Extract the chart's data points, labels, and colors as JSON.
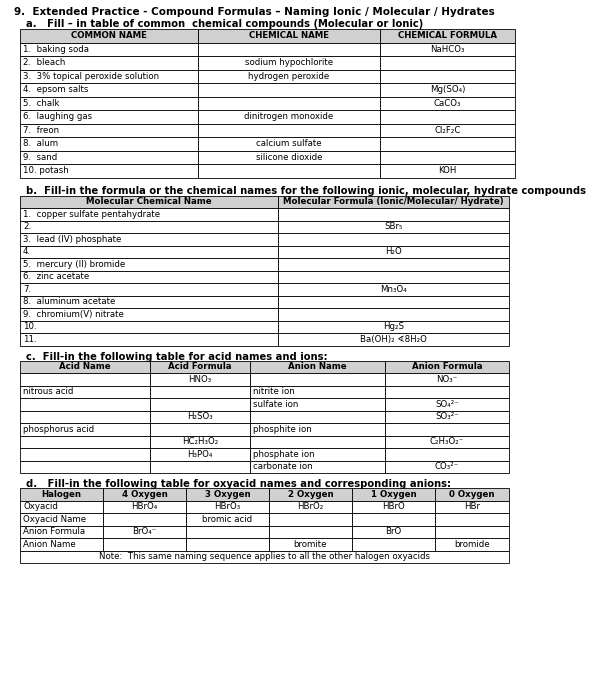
{
  "title": "9.  Extended Practice - Compound Formulas – Naming Ionic / Molecular / Hydrates",
  "section_a_label": "a.   Fill – in table of common  chemical compounds (Molecular or Ionic)",
  "table_a_headers": [
    "COMMON NAME",
    "CHEMICAL NAME",
    "CHEMICAL FORMULA"
  ],
  "table_a_rows": [
    [
      "1.  baking soda",
      "",
      "NaHCO₃"
    ],
    [
      "2.  bleach",
      "sodium hypochlorite",
      ""
    ],
    [
      "3.  3% topical peroxide solution",
      "hydrogen peroxide",
      ""
    ],
    [
      "4.  epsom salts",
      "",
      "Mg(SO₄)"
    ],
    [
      "5.  chalk",
      "",
      "CaCO₃"
    ],
    [
      "6.  laughing gas",
      "dinitrogen monoxide",
      ""
    ],
    [
      "7.  freon",
      "",
      "Cl₂F₂C"
    ],
    [
      "8.  alum",
      "calcium sulfate",
      ""
    ],
    [
      "9.  sand",
      "silicone dioxide",
      ""
    ],
    [
      "10. potash",
      "",
      "KOH"
    ]
  ],
  "section_b_label": "b.  Fill-in the formula or the chemical names for the following ionic, molecular, hydrate compounds",
  "table_b_headers": [
    "Molecular Chemical Name",
    "Molecular Formula (Ionic/Molecular/ Hydrate)"
  ],
  "table_b_rows": [
    [
      "1.  copper sulfate pentahydrate",
      ""
    ],
    [
      "2.",
      "SBr₅"
    ],
    [
      "3.  lead (IV) phosphate",
      ""
    ],
    [
      "4.",
      "H₂O"
    ],
    [
      "5.  mercury (II) bromide",
      ""
    ],
    [
      "6.  zinc acetate",
      ""
    ],
    [
      "7.",
      "Mn₃O₄"
    ],
    [
      "8.  aluminum acetate",
      ""
    ],
    [
      "9.  chromium(V) nitrate",
      ""
    ],
    [
      "10.",
      "Hg₂S"
    ],
    [
      "11.",
      "Ba(OH)₂ ∢8H₂O"
    ]
  ],
  "section_c_label": "c.  Fill-in the following table for acid names and ions:",
  "table_c_headers": [
    "Acid Name",
    "Acid Formula",
    "Anion Name",
    "Anion Formula"
  ],
  "table_c_rows": [
    [
      "",
      "HNO₃",
      "",
      "NO₃⁻"
    ],
    [
      "nitrous acid",
      "",
      "nitrite ion",
      ""
    ],
    [
      "",
      "",
      "sulfate ion",
      "SO₄²⁻"
    ],
    [
      "",
      "H₂SO₃",
      "",
      "SO₃²⁻"
    ],
    [
      "phosphorus acid",
      "",
      "phosphite ion",
      ""
    ],
    [
      "",
      "HC₂H₃O₂",
      "",
      "C₂H₃O₂⁻"
    ],
    [
      "",
      "H₃PO₄",
      "phosphate ion",
      ""
    ],
    [
      "",
      "",
      "carbonate ion",
      "CO₃²⁻"
    ]
  ],
  "section_d_label": "d.   Fill-in the following table for oxyacid names and corresponding anions:",
  "table_d_headers": [
    "Halogen",
    "4 Oxygen",
    "3 Oxygen",
    "2 Oxygen",
    "1 Oxygen",
    "0 Oxygen"
  ],
  "table_d_rows": [
    [
      "Oxyacid",
      "HBrO₄",
      "HBrO₃",
      "HBrO₂",
      "HBrO",
      "HBr"
    ],
    [
      "Oxyacid Name",
      "",
      "bromic acid",
      "",
      "",
      ""
    ],
    [
      "Anion Formula",
      "BrO₄⁻",
      "",
      "",
      "BrO",
      ""
    ],
    [
      "Anion Name",
      "",
      "",
      "bromite",
      "",
      "bromide"
    ]
  ],
  "note": "Note:  This same naming sequence applies to all the other halogen oxyacids",
  "note_underline1": "same naming sequence",
  "note_underline2": "halogen oxyacids",
  "bg_color": "#ffffff",
  "text_color": "#000000"
}
